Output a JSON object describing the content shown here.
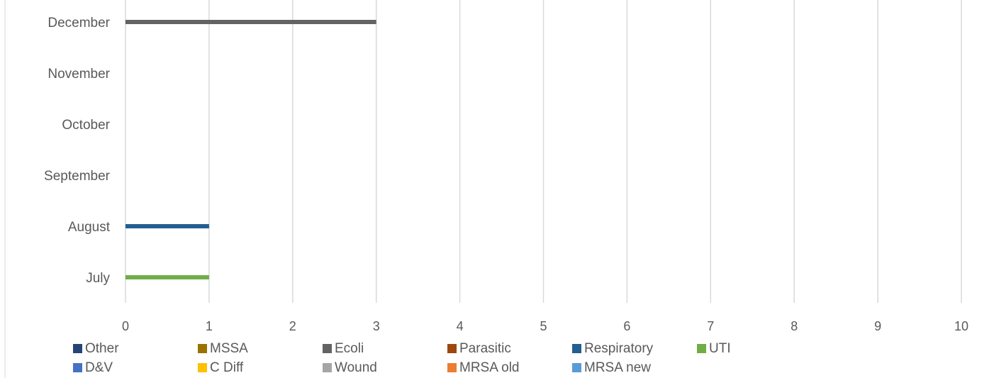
{
  "chart_data": {
    "type": "bar",
    "orientation": "horizontal",
    "categories": [
      "July",
      "August",
      "September",
      "October",
      "November",
      "December"
    ],
    "xlim": [
      0,
      10
    ],
    "x_ticks": [
      0,
      1,
      2,
      3,
      4,
      5,
      6,
      7,
      8,
      9,
      10
    ],
    "grid": true,
    "legend_position": "bottom",
    "series": [
      {
        "name": "Other",
        "color": "#264478",
        "values": [
          0,
          0,
          0,
          0,
          0,
          0
        ]
      },
      {
        "name": "MSSA",
        "color": "#997300",
        "values": [
          0,
          0,
          0,
          0,
          0,
          0
        ]
      },
      {
        "name": "Ecoli",
        "color": "#636363",
        "values": [
          0,
          0,
          0,
          0,
          0,
          3
        ]
      },
      {
        "name": "Parasitic",
        "color": "#9E480E",
        "values": [
          0,
          0,
          0,
          0,
          0,
          0
        ]
      },
      {
        "name": "Respiratory",
        "color": "#255E91",
        "values": [
          0,
          1,
          0,
          0,
          0,
          0
        ]
      },
      {
        "name": "UTI",
        "color": "#70AD47",
        "values": [
          1,
          0,
          0,
          0,
          0,
          0
        ]
      },
      {
        "name": "D&V",
        "color": "#4472C4",
        "values": [
          0,
          0,
          0,
          0,
          0,
          0
        ]
      },
      {
        "name": "C Diff",
        "color": "#FFC000",
        "values": [
          0,
          0,
          0,
          0,
          0,
          0
        ]
      },
      {
        "name": "Wound",
        "color": "#A5A5A5",
        "values": [
          0,
          0,
          0,
          0,
          0,
          0
        ]
      },
      {
        "name": "MRSA old",
        "color": "#ED7D31",
        "values": [
          0,
          0,
          0,
          0,
          0,
          0
        ]
      },
      {
        "name": "MRSA new",
        "color": "#5B9BD5",
        "values": [
          0,
          0,
          0,
          0,
          0,
          0
        ]
      }
    ]
  }
}
